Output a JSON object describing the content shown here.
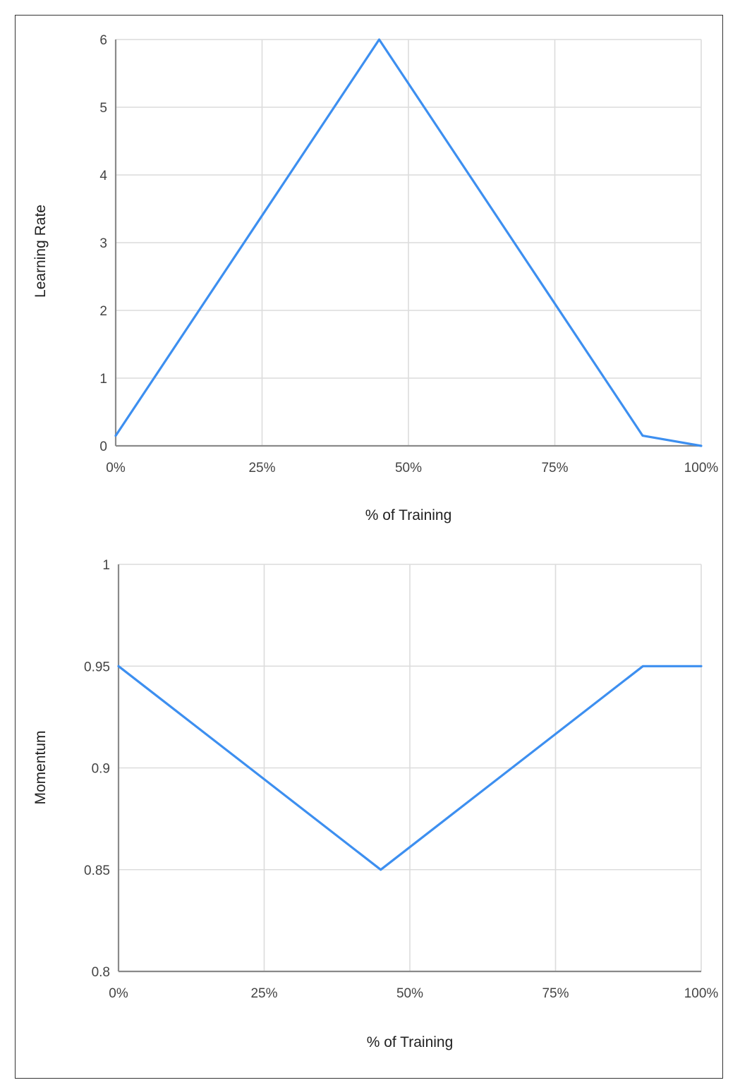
{
  "chart_data": [
    {
      "type": "line",
      "xlabel": "% of Training",
      "ylabel": "Learning Rate",
      "xlim": [
        0,
        100
      ],
      "ylim": [
        0,
        6
      ],
      "x_ticks": [
        "0%",
        "25%",
        "50%",
        "75%",
        "100%"
      ],
      "y_ticks": [
        "0",
        "1",
        "2",
        "3",
        "4",
        "5",
        "6"
      ],
      "grid": true,
      "line_color": "#3d8ff0",
      "series": [
        {
          "x": [
            0,
            45,
            90,
            100
          ],
          "values": [
            0.15,
            6.0,
            0.15,
            0.0
          ]
        }
      ]
    },
    {
      "type": "line",
      "xlabel": "% of Training",
      "ylabel": "Momentum",
      "xlim": [
        0,
        100
      ],
      "ylim": [
        0.8,
        1.0
      ],
      "x_ticks": [
        "0%",
        "25%",
        "50%",
        "75%",
        "100%"
      ],
      "y_ticks": [
        "0.8",
        "0.85",
        "0.9",
        "0.95",
        "1"
      ],
      "grid": true,
      "line_color": "#3d8ff0",
      "series": [
        {
          "x": [
            0,
            45,
            90,
            100
          ],
          "values": [
            0.95,
            0.85,
            0.95,
            0.95
          ]
        }
      ]
    }
  ]
}
